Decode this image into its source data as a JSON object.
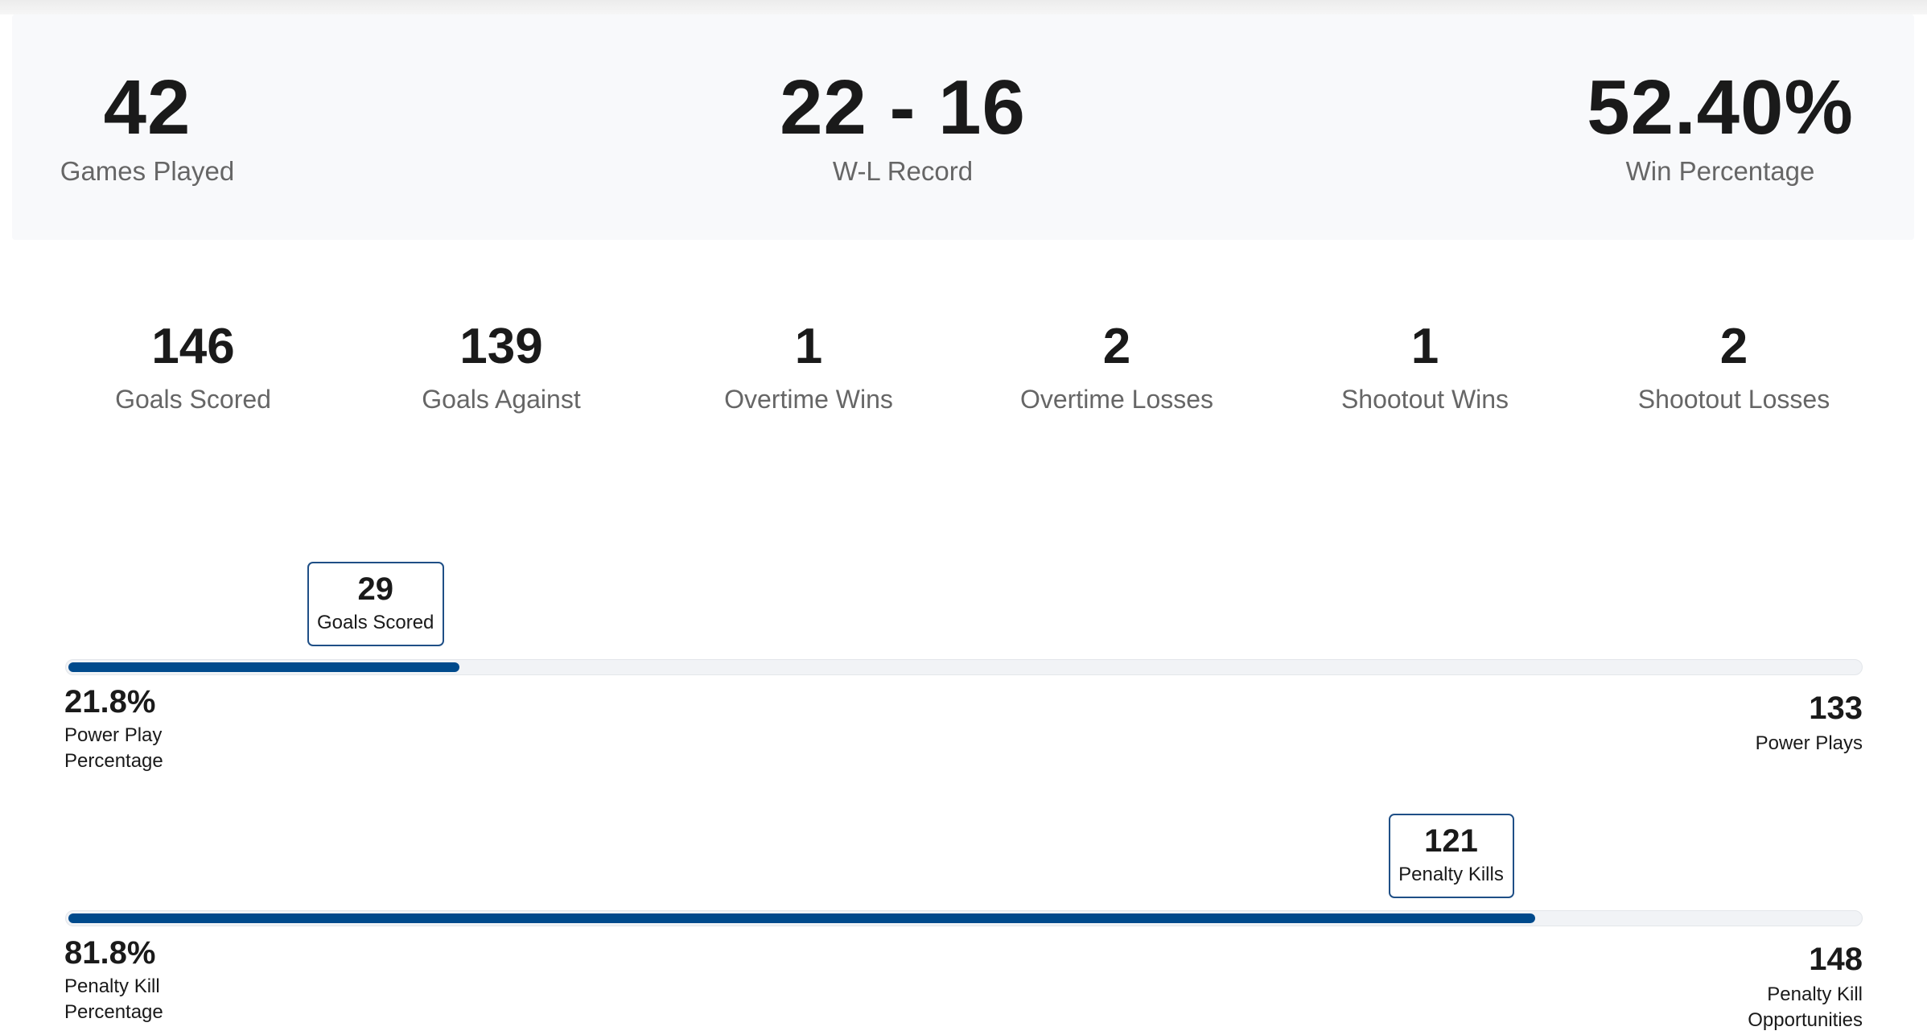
{
  "summary": [
    {
      "value": "42",
      "label": "Games Played"
    },
    {
      "value": "22 - 16",
      "label": "W-L Record"
    },
    {
      "value": "52.40%",
      "label": "Win Percentage"
    }
  ],
  "stats": [
    {
      "value": "146",
      "label": "Goals Scored"
    },
    {
      "value": "139",
      "label": "Goals Against"
    },
    {
      "value": "1",
      "label": "Overtime Wins"
    },
    {
      "value": "2",
      "label": "Overtime Losses"
    },
    {
      "value": "1",
      "label": "Shootout Wins"
    },
    {
      "value": "2",
      "label": "Shootout Losses"
    }
  ],
  "power_play": {
    "percent": 21.8,
    "percent_text": "21.8%",
    "percent_label": "Power Play Percentage",
    "marker_value": "29",
    "marker_label": "Goals Scored",
    "total_value": "133",
    "total_label": "Power Plays"
  },
  "penalty_kill": {
    "percent": 81.8,
    "percent_text": "81.8%",
    "percent_label": "Penalty Kill Percentage",
    "marker_value": "121",
    "marker_label": "Penalty Kills",
    "total_value": "148",
    "total_label": "Penalty Kill Opportunities"
  },
  "colors": {
    "bar_fill": "#004a8c",
    "bar_track": "#f1f3f6",
    "marker_border": "#1f4f86"
  }
}
